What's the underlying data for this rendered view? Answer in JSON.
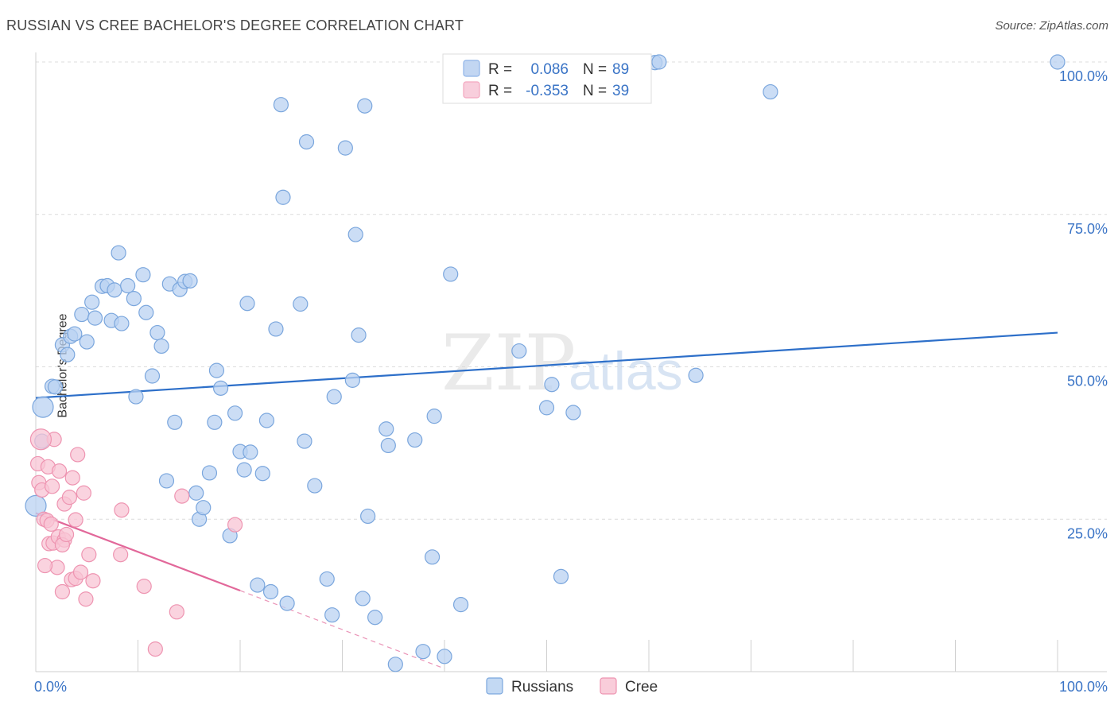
{
  "title": "RUSSIAN VS CREE BACHELOR'S DEGREE CORRELATION CHART",
  "source": "Source: ZipAtlas.com",
  "watermark": {
    "zip": "ZIP",
    "atlas": "atlas"
  },
  "chart_data": {
    "type": "scatter",
    "xlabel": "",
    "ylabel": "Bachelor's Degree",
    "xlim": [
      0,
      100
    ],
    "ylim": [
      0,
      100
    ],
    "x_tick_labels": [
      "0.0%",
      "100.0%"
    ],
    "y_tick_labels": [
      "100.0%",
      "75.0%",
      "50.0%",
      "25.0%"
    ],
    "y_ticks": [
      100,
      75,
      50,
      25
    ],
    "legend_stats": [
      {
        "r_label": "R =",
        "r_value": "0.086",
        "n_label": "N =",
        "n_value": "89",
        "color": "#8fb4e8"
      },
      {
        "r_label": "R =",
        "r_value": "-0.353",
        "n_label": "N =",
        "n_value": "39",
        "color": "#f3a6bf"
      }
    ],
    "legend_bottom": [
      "Russians",
      "Cree"
    ],
    "series": [
      {
        "name": "Russians",
        "fill": "#b9d2f1",
        "stroke": "#7aa6dd",
        "trend": {
          "x1": 0,
          "y1": 44.9,
          "x2": 100,
          "y2": 55.6,
          "color": "#2d6fc9"
        },
        "points": [
          [
            0.7,
            43.4
          ],
          [
            1.6,
            46.8
          ],
          [
            1.9,
            46.7
          ],
          [
            0.6,
            37.8
          ],
          [
            0,
            27.2
          ],
          [
            2.6,
            53.6
          ],
          [
            3.1,
            52.0
          ],
          [
            3.4,
            55.0
          ],
          [
            3.8,
            55.4
          ],
          [
            5.0,
            54.1
          ],
          [
            4.5,
            58.6
          ],
          [
            5.5,
            60.6
          ],
          [
            5.8,
            58.0
          ],
          [
            6.5,
            63.2
          ],
          [
            7.0,
            63.3
          ],
          [
            7.4,
            57.6
          ],
          [
            7.7,
            62.6
          ],
          [
            8.1,
            68.7
          ],
          [
            8.4,
            57.1
          ],
          [
            9.0,
            63.3
          ],
          [
            9.6,
            61.2
          ],
          [
            9.8,
            45.1
          ],
          [
            10.5,
            65.1
          ],
          [
            10.8,
            58.9
          ],
          [
            11.4,
            48.5
          ],
          [
            11.9,
            55.6
          ],
          [
            12.3,
            53.4
          ],
          [
            13.1,
            63.6
          ],
          [
            14.1,
            62.7
          ],
          [
            14.6,
            64.0
          ],
          [
            15.1,
            64.1
          ],
          [
            13.6,
            40.9
          ],
          [
            12.8,
            31.3
          ],
          [
            15.7,
            29.3
          ],
          [
            16.0,
            25.0
          ],
          [
            16.4,
            26.9
          ],
          [
            17.0,
            32.6
          ],
          [
            17.5,
            40.9
          ],
          [
            17.7,
            49.4
          ],
          [
            18.1,
            46.5
          ],
          [
            19.0,
            22.3
          ],
          [
            19.5,
            42.4
          ],
          [
            20.0,
            36.1
          ],
          [
            20.4,
            33.1
          ],
          [
            20.7,
            60.4
          ],
          [
            21.0,
            36.0
          ],
          [
            21.7,
            14.2
          ],
          [
            22.2,
            32.5
          ],
          [
            22.6,
            41.2
          ],
          [
            23.0,
            13.1
          ],
          [
            23.5,
            56.2
          ],
          [
            24.0,
            93.0
          ],
          [
            24.2,
            77.8
          ],
          [
            24.6,
            11.2
          ],
          [
            25.9,
            60.3
          ],
          [
            26.3,
            37.8
          ],
          [
            26.5,
            86.9
          ],
          [
            27.3,
            30.5
          ],
          [
            28.5,
            15.2
          ],
          [
            29.0,
            9.3
          ],
          [
            29.2,
            45.1
          ],
          [
            30.3,
            85.9
          ],
          [
            31.0,
            47.8
          ],
          [
            31.3,
            71.7
          ],
          [
            31.6,
            55.2
          ],
          [
            32.2,
            92.8
          ],
          [
            32.0,
            12.0
          ],
          [
            32.5,
            25.5
          ],
          [
            33.2,
            8.9
          ],
          [
            34.3,
            39.8
          ],
          [
            34.5,
            37.1
          ],
          [
            35.2,
            1.2
          ],
          [
            37.1,
            38.0
          ],
          [
            37.9,
            3.3
          ],
          [
            38.8,
            18.8
          ],
          [
            39.0,
            41.9
          ],
          [
            40.0,
            2.5
          ],
          [
            40.6,
            65.2
          ],
          [
            41.6,
            11.0
          ],
          [
            47.3,
            52.6
          ],
          [
            50.0,
            43.3
          ],
          [
            50.5,
            47.1
          ],
          [
            51.4,
            15.6
          ],
          [
            52.6,
            42.5
          ],
          [
            60.6,
            99.9
          ],
          [
            61.0,
            100.0
          ],
          [
            64.6,
            48.6
          ],
          [
            71.9,
            95.1
          ],
          [
            100.0,
            100.0
          ]
        ],
        "big_points": [
          [
            0.7,
            43.4
          ],
          [
            0,
            27.2
          ]
        ]
      },
      {
        "name": "Cree",
        "fill": "#f8c4d4",
        "stroke": "#ee94b1",
        "trend": {
          "x1": 0,
          "y1": 26.0,
          "x2": 20.0,
          "y2": 13.3,
          "dash_to_x": 40.0,
          "dash_to_y": 0.5,
          "color": "#e2689a"
        },
        "points": [
          [
            0.2,
            34.1
          ],
          [
            0.3,
            31.0
          ],
          [
            0.6,
            29.8
          ],
          [
            0.8,
            25.0
          ],
          [
            1.1,
            24.8
          ],
          [
            1.2,
            33.6
          ],
          [
            1.3,
            21.0
          ],
          [
            1.6,
            30.4
          ],
          [
            1.7,
            21.1
          ],
          [
            1.8,
            38.1
          ],
          [
            2.1,
            17.1
          ],
          [
            2.2,
            22.1
          ],
          [
            2.3,
            32.9
          ],
          [
            2.6,
            13.1
          ],
          [
            2.8,
            27.5
          ],
          [
            2.8,
            21.6
          ],
          [
            2.6,
            20.8
          ],
          [
            3.3,
            28.6
          ],
          [
            3.6,
            31.8
          ],
          [
            3.9,
            24.9
          ],
          [
            3.5,
            15.1
          ],
          [
            3.9,
            15.3
          ],
          [
            4.1,
            35.6
          ],
          [
            4.4,
            16.3
          ],
          [
            4.7,
            29.3
          ],
          [
            4.9,
            11.9
          ],
          [
            5.2,
            19.2
          ],
          [
            5.6,
            14.9
          ],
          [
            8.3,
            19.2
          ],
          [
            8.4,
            26.5
          ],
          [
            10.6,
            14.0
          ],
          [
            11.7,
            3.7
          ],
          [
            13.8,
            9.8
          ],
          [
            14.3,
            28.8
          ],
          [
            19.5,
            24.1
          ],
          [
            0.5,
            38.1
          ],
          [
            0.9,
            17.4
          ],
          [
            1.5,
            24.2
          ],
          [
            3.0,
            22.5
          ]
        ],
        "big_points": [
          [
            0.5,
            38.1
          ]
        ]
      }
    ]
  }
}
